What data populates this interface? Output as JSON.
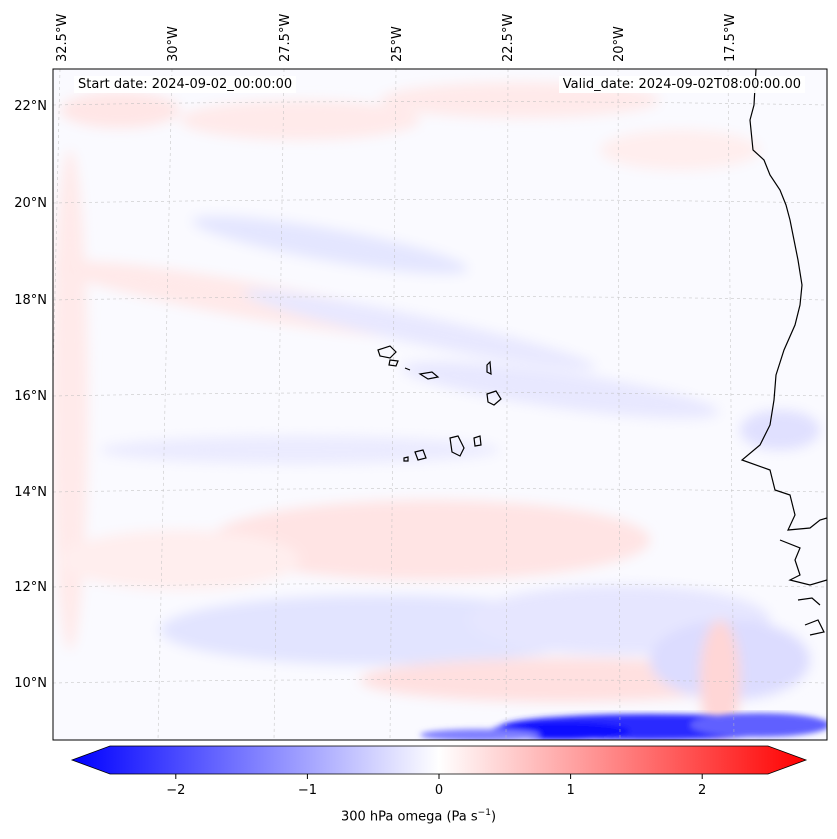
{
  "header": {
    "start_date": "Start date: 2024-09-02_00:00:00",
    "valid_date": "Valid_date: 2024-09-02T08:00:00.00"
  },
  "map": {
    "lon_labels": [
      "32.5°W",
      "30°W",
      "27.5°W",
      "25°W",
      "22.5°W",
      "20°W",
      "17.5°W"
    ],
    "lat_labels": [
      "22°N",
      "20°N",
      "18°N",
      "16°N",
      "14°N",
      "12°N",
      "10°N"
    ]
  },
  "colorbar": {
    "variable": "300 hPa omega",
    "units_base": "(Pa s",
    "units_exp": "−1",
    "units_close": ")",
    "ticks": [
      "−2",
      "−1",
      "0",
      "1",
      "2"
    ],
    "tick_values": [
      -2,
      -1,
      0,
      1,
      2
    ],
    "range": [
      -2.5,
      2.5
    ],
    "colors": {
      "negative": "#0000ff",
      "zero": "#ffffff",
      "positive": "#ff0000",
      "coast": "#000000"
    }
  }
}
